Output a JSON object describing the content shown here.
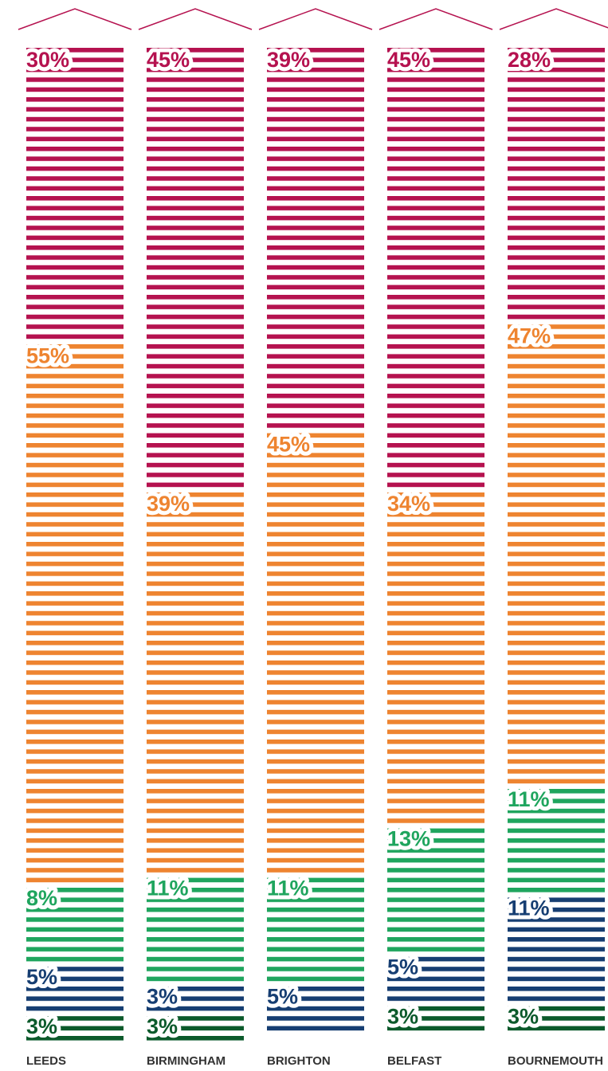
{
  "chart_data": {
    "type": "bar",
    "stacked": true,
    "categories": [
      "LEEDS",
      "BIRMINGHAM",
      "BRIGHTON",
      "BELFAST",
      "BOURNEMOUTH"
    ],
    "series": [
      {
        "color": "#b5124f",
        "values": [
          30,
          45,
          39,
          45,
          28
        ],
        "value_labels": [
          "30%",
          "45%",
          "39%",
          "45%",
          "28%"
        ]
      },
      {
        "color": "#ee8430",
        "values": [
          55,
          39,
          45,
          34,
          47
        ],
        "value_labels": [
          "55%",
          "39%",
          "45%",
          "34%",
          "47%"
        ]
      },
      {
        "color": "#1fa55e",
        "values": [
          8,
          11,
          11,
          13,
          11
        ],
        "value_labels": [
          "8%",
          "11%",
          "11%",
          "13%",
          "11%"
        ]
      },
      {
        "color": "#163e72",
        "values": [
          5,
          3,
          5,
          5,
          11
        ],
        "value_labels": [
          "5%",
          "3%",
          "5%",
          "5%",
          "11%"
        ]
      },
      {
        "color": "#0b5a2b",
        "values": [
          3,
          3,
          null,
          3,
          3
        ],
        "value_labels": [
          "3%",
          "3%",
          null,
          "3%",
          "3%"
        ]
      }
    ]
  }
}
